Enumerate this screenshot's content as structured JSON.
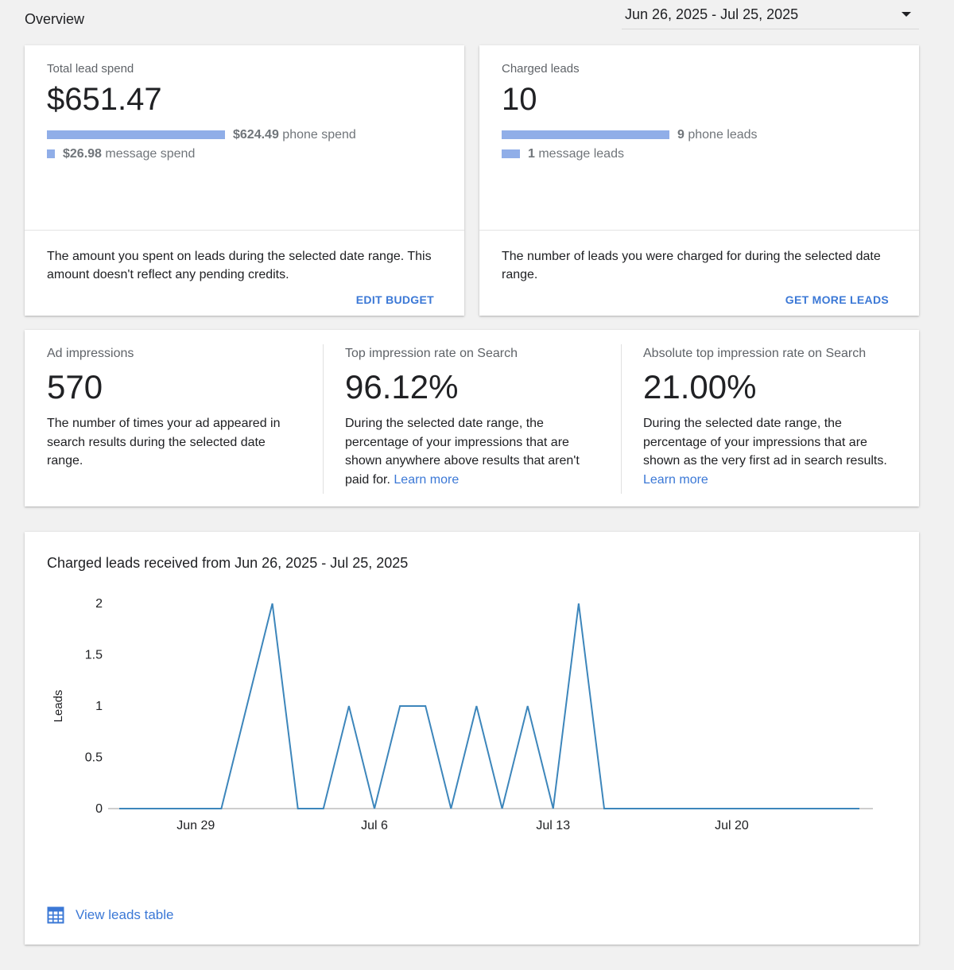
{
  "header": {
    "title": "Overview",
    "date_range": "Jun 26, 2025 - Jul 25, 2025"
  },
  "lead_spend": {
    "label": "Total lead spend",
    "value": "$651.47",
    "phone_amount": "$624.49",
    "phone_suffix": " phone spend",
    "phone_fraction": 0.9586,
    "message_amount": "$26.98",
    "message_suffix": " message spend",
    "message_fraction": 0.0414,
    "description": "The amount you spent on leads during the selected date range. This amount doesn't reflect any pending credits.",
    "action": "EDIT BUDGET"
  },
  "charged_leads": {
    "label": "Charged leads",
    "value": "10",
    "phone_count": "9",
    "phone_suffix": " phone leads",
    "phone_fraction": 0.9,
    "message_count": "1",
    "message_suffix": " message leads",
    "message_fraction": 0.1,
    "description": "The number of leads you were charged for during the selected date range.",
    "action": "GET MORE LEADS"
  },
  "impressions": {
    "label": "Ad impressions",
    "value": "570",
    "description": "The number of times your ad appeared in search results during the selected date range."
  },
  "top_rate": {
    "label": "Top impression rate on Search",
    "value": "96.12%",
    "description": "During the selected date range, the percentage of your impressions that are shown anywhere above results that aren't paid for.",
    "link": "Learn more"
  },
  "abs_top_rate": {
    "label": "Absolute top impression rate on Search",
    "value": "21.00%",
    "description": "During the selected date range, the percentage of your impressions that are shown as the very first ad in search results.",
    "link": "Learn more"
  },
  "chart_card": {
    "title": "Charged leads received from Jun 26, 2025 - Jul 25, 2025",
    "view_table": "View leads table",
    "table_icon": "table-grid-icon"
  },
  "colors": {
    "accent": "#3b78d6",
    "bar": "#90aee8",
    "line": "#3d86bb"
  },
  "chart_data": {
    "type": "line",
    "title": "Charged leads received from Jun 26, 2025 - Jul 25, 2025",
    "xlabel": "",
    "ylabel": "Leads",
    "ylim": [
      0,
      2
    ],
    "yticks": [
      "0",
      "0.5",
      "1",
      "1.5",
      "2"
    ],
    "xtick_labels": [
      {
        "label": "Jun 29",
        "date": "2025-06-29"
      },
      {
        "label": "Jul 6",
        "date": "2025-07-06"
      },
      {
        "label": "Jul 13",
        "date": "2025-07-13"
      },
      {
        "label": "Jul 20",
        "date": "2025-07-20"
      }
    ],
    "grid": false,
    "legend": "none",
    "series": [
      {
        "x": [
          "2025-06-26",
          "2025-06-27",
          "2025-06-28",
          "2025-06-29",
          "2025-06-30",
          "2025-07-01",
          "2025-07-02",
          "2025-07-03",
          "2025-07-04",
          "2025-07-05",
          "2025-07-06",
          "2025-07-07",
          "2025-07-08",
          "2025-07-09",
          "2025-07-10",
          "2025-07-11",
          "2025-07-12",
          "2025-07-13",
          "2025-07-14",
          "2025-07-15",
          "2025-07-16",
          "2025-07-17",
          "2025-07-18",
          "2025-07-19",
          "2025-07-20",
          "2025-07-21",
          "2025-07-22",
          "2025-07-23",
          "2025-07-24",
          "2025-07-25"
        ],
        "values": [
          0,
          0,
          0,
          0,
          0,
          1,
          2,
          0,
          0,
          1,
          0,
          1,
          1,
          0,
          1,
          0,
          1,
          0,
          2,
          0,
          0,
          0,
          0,
          0,
          0,
          0,
          0,
          0,
          0,
          0
        ]
      }
    ]
  }
}
